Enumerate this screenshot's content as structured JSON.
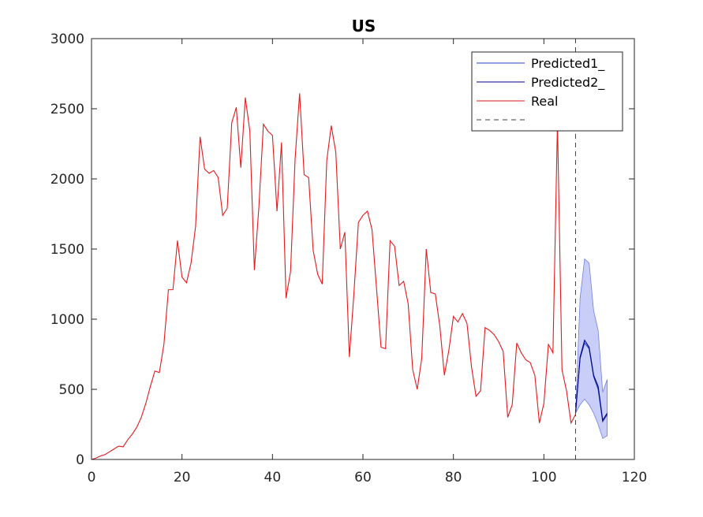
{
  "chart_data": {
    "type": "line",
    "title": "US",
    "xlabel": "",
    "ylabel": "",
    "xlim": [
      0,
      120
    ],
    "ylim": [
      0,
      3000
    ],
    "xticks": [
      "0",
      "20",
      "40",
      "60",
      "80",
      "100",
      "120"
    ],
    "yticks": [
      "0",
      "500",
      "1000",
      "1500",
      "2000",
      "2500",
      "3000"
    ],
    "grid": false,
    "legend_position": "top-right",
    "legend": [
      "Predicted1_",
      "Predicted2_",
      "Real",
      ""
    ],
    "colors": {
      "real": "#e31a1c",
      "predicted1": "#1f3fbf",
      "predicted2": "#00008b",
      "band": "#9aa6f0",
      "cutoff": "#404040"
    },
    "cutoff_x": 107,
    "series": [
      {
        "name": "Real",
        "x": [
          0,
          1,
          2,
          3,
          4,
          5,
          6,
          7,
          8,
          9,
          10,
          11,
          12,
          13,
          14,
          15,
          16,
          17,
          18,
          19,
          20,
          21,
          22,
          23,
          24,
          25,
          26,
          27,
          28,
          29,
          30,
          31,
          32,
          33,
          34,
          35,
          36,
          37,
          38,
          39,
          40,
          41,
          42,
          43,
          44,
          45,
          46,
          47,
          48,
          49,
          50,
          51,
          52,
          53,
          54,
          55,
          56,
          57,
          58,
          59,
          60,
          61,
          62,
          63,
          64,
          65,
          66,
          67,
          68,
          69,
          70,
          71,
          72,
          73,
          74,
          75,
          76,
          77,
          78,
          79,
          80,
          81,
          82,
          83,
          84,
          85,
          86,
          87,
          88,
          89,
          90,
          91,
          92,
          93,
          94,
          95,
          96,
          97,
          98,
          99,
          100,
          101,
          102,
          103,
          104,
          105,
          106,
          107
        ],
        "y": [
          0,
          10,
          25,
          35,
          55,
          75,
          95,
          90,
          140,
          180,
          230,
          300,
          400,
          520,
          630,
          620,
          820,
          1210,
          1210,
          1560,
          1300,
          1260,
          1400,
          1660,
          2300,
          2070,
          2040,
          2060,
          2010,
          1740,
          1790,
          2400,
          2510,
          2080,
          2580,
          2340,
          1350,
          1800,
          2390,
          2340,
          2310,
          1770,
          2260,
          1150,
          1340,
          2140,
          2610,
          2030,
          2010,
          1490,
          1320,
          1250,
          2130,
          2380,
          2190,
          1500,
          1620,
          730,
          1180,
          1690,
          1740,
          1770,
          1640,
          1220,
          800,
          790,
          1560,
          1520,
          1240,
          1270,
          1110,
          640,
          500,
          720,
          1500,
          1190,
          1180,
          950,
          600,
          780,
          1020,
          980,
          1040,
          970,
          660,
          450,
          490,
          940,
          920,
          890,
          840,
          770,
          300,
          390,
          830,
          760,
          710,
          690,
          600,
          260,
          400,
          820,
          760,
          2400,
          640,
          490,
          260,
          320
        ]
      },
      {
        "name": "Predicted1_",
        "x": [
          107,
          108,
          109,
          110,
          111,
          112,
          113,
          114
        ],
        "y": [
          330,
          720,
          830,
          790,
          590,
          500,
          270,
          320
        ]
      },
      {
        "name": "Predicted2_",
        "x": [
          107,
          108,
          109,
          110,
          111,
          112,
          113,
          114
        ],
        "y": [
          330,
          730,
          850,
          800,
          600,
          520,
          280,
          330
        ]
      }
    ],
    "band": {
      "x": [
        107,
        108,
        109,
        110,
        111,
        112,
        113,
        114
      ],
      "upper": [
        330,
        1150,
        1430,
        1400,
        1060,
        920,
        480,
        570
      ],
      "lower": [
        330,
        390,
        430,
        390,
        330,
        250,
        150,
        170
      ]
    }
  }
}
